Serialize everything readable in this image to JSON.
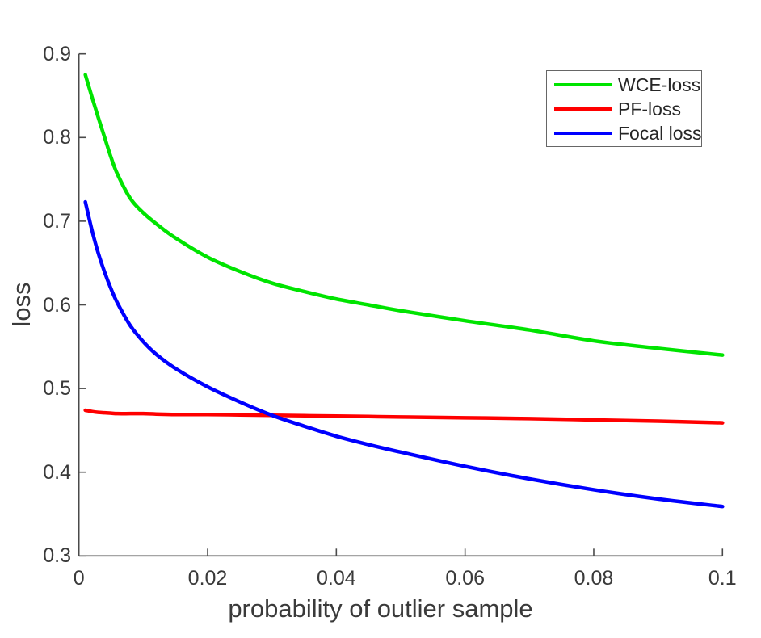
{
  "figure": {
    "background": "#ffffff",
    "axis_color": "#4a4a4a",
    "tick_label_color": "#3a3a3a"
  },
  "chart_data": {
    "type": "line",
    "title": "",
    "xlabel": "probability of outlier sample",
    "ylabel": "loss",
    "xlim": [
      0,
      0.1
    ],
    "ylim": [
      0.3,
      0.9
    ],
    "xticks": [
      0,
      0.02,
      0.04,
      0.06,
      0.08,
      0.1
    ],
    "xtick_labels": [
      "0",
      "0.02",
      "0.04",
      "0.06",
      "0.08",
      "0.1"
    ],
    "yticks": [
      0.3,
      0.4,
      0.5,
      0.6,
      0.7,
      0.8,
      0.9
    ],
    "ytick_labels": [
      "0.3",
      "0.4",
      "0.5",
      "0.6",
      "0.7",
      "0.8",
      "0.9"
    ],
    "grid": false,
    "legend_position": "top-right",
    "line_width": 4.5,
    "x": [
      0.001,
      0.002,
      0.003,
      0.004,
      0.005,
      0.006,
      0.008,
      0.01,
      0.012,
      0.015,
      0.02,
      0.025,
      0.03,
      0.035,
      0.04,
      0.045,
      0.05,
      0.06,
      0.07,
      0.08,
      0.09,
      0.1
    ],
    "series": [
      {
        "name": "WCE-loss",
        "color": "#00e400",
        "values": [
          0.875,
          0.849,
          0.824,
          0.8,
          0.776,
          0.756,
          0.727,
          0.71,
          0.697,
          0.68,
          0.657,
          0.64,
          0.626,
          0.616,
          0.607,
          0.6,
          0.593,
          0.581,
          0.57,
          0.557,
          0.548,
          0.54
        ]
      },
      {
        "name": "PF-loss",
        "color": "#ff0000",
        "values": [
          0.474,
          0.4725,
          0.4715,
          0.471,
          0.4705,
          0.47,
          0.47,
          0.47,
          0.4695,
          0.469,
          0.469,
          0.4685,
          0.468,
          0.4675,
          0.467,
          0.4665,
          0.466,
          0.465,
          0.464,
          0.4625,
          0.461,
          0.459
        ]
      },
      {
        "name": "Focal loss",
        "color": "#0000ff",
        "values": [
          0.723,
          0.69,
          0.662,
          0.639,
          0.619,
          0.602,
          0.575,
          0.556,
          0.541,
          0.524,
          0.502,
          0.484,
          0.468,
          0.455,
          0.443,
          0.433,
          0.424,
          0.407,
          0.392,
          0.379,
          0.368,
          0.359
        ]
      }
    ]
  }
}
